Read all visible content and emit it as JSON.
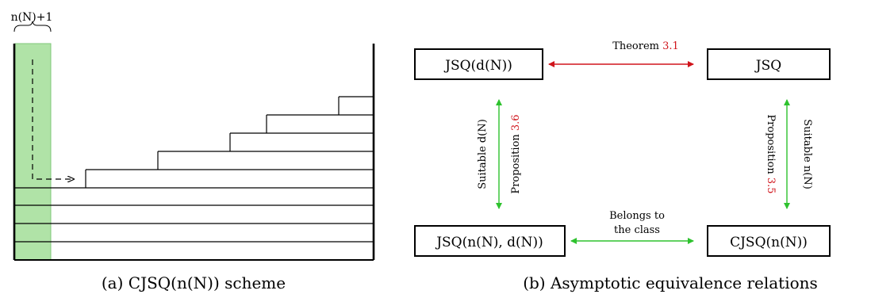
{
  "left_figure": {
    "brace_label": "n(N)+1",
    "caption": "(a) CJSQ(n(N)) scheme"
  },
  "right_figure": {
    "caption": "(b) Asymptotic equivalence relations",
    "nodes": {
      "jsq_d": "JSQ(d(N))",
      "jsq": "JSQ",
      "jsq_n_d": "JSQ(n(N), d(N))",
      "cjsq_n": "CJSQ(n(N))"
    },
    "edges": {
      "top": {
        "text": "Theorem ",
        "ref": "3.1",
        "color": "#d0141b"
      },
      "left": {
        "text_outer": "Suitable d(N)",
        "text_inner": "Proposition ",
        "ref": "3.6",
        "color": "#2ec22e"
      },
      "right": {
        "text_outer": "Suitable n(N)",
        "text_inner": "Proposition ",
        "ref": "3.5",
        "color": "#2ec22e"
      },
      "bottom": {
        "line1": "Belongs to",
        "line2": "the class",
        "color": "#2ec22e"
      }
    }
  },
  "colors": {
    "green_fill": "#b0e3a7",
    "green_border": "#7fc77a",
    "red_arrow": "#d0141b",
    "green_arrow": "#2ec22e"
  }
}
